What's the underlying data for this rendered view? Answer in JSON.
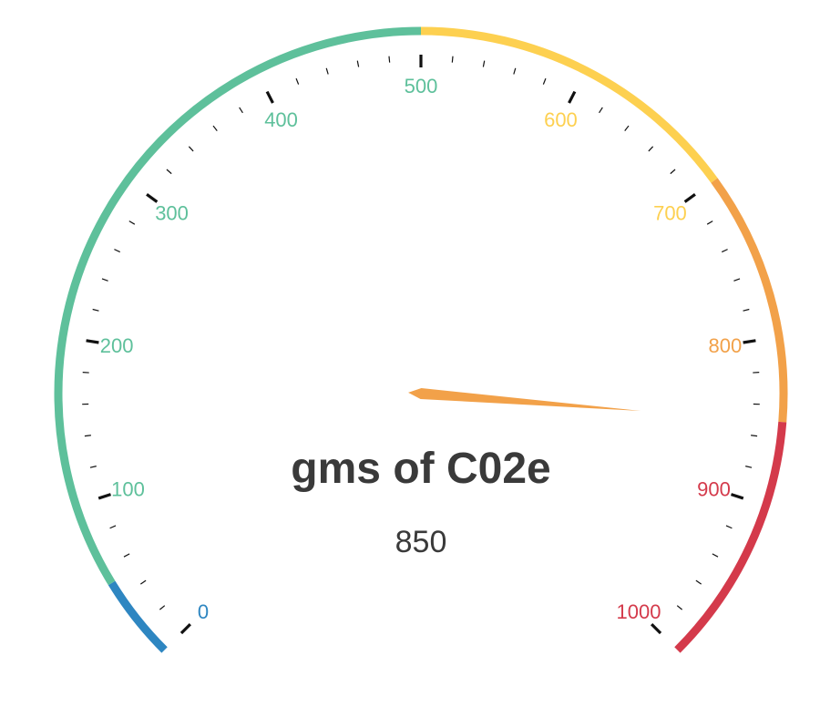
{
  "chart_data": {
    "type": "gauge",
    "title": "gms of C02e",
    "value": 850,
    "value_label": "850",
    "min": 0,
    "max": 1000,
    "major_ticks": [
      0,
      100,
      200,
      300,
      400,
      500,
      600,
      700,
      800,
      900,
      1000
    ],
    "tick_labels": [
      "0",
      "100",
      "200",
      "300",
      "400",
      "500",
      "600",
      "700",
      "800",
      "900",
      "1000"
    ],
    "minor_tick_step": 20,
    "bands": [
      {
        "from": 0,
        "to": 50,
        "color": "#2e86c1"
      },
      {
        "from": 50,
        "to": 500,
        "color": "#5ec09b"
      },
      {
        "from": 500,
        "to": 700,
        "color": "#fdd050"
      },
      {
        "from": 700,
        "to": 850,
        "color": "#f2a149"
      },
      {
        "from": 850,
        "to": 1000,
        "color": "#d43a4b"
      }
    ],
    "needle_color": "#f2a149"
  }
}
